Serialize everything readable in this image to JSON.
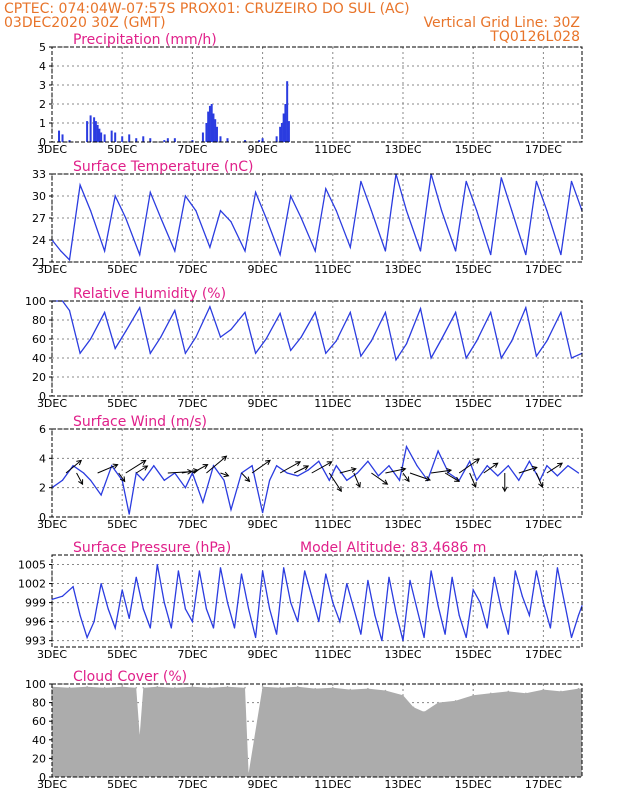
{
  "header": {
    "line1_left": "CPTEC:   074:04W-07:57S   PROX01: CRUZEIRO DO SUL (AC)",
    "line2_left": "03DEC2020 30Z (GMT)",
    "line2_right": "Vertical Grid Line: 30Z",
    "line3_right": "TQ0126L028"
  },
  "colors": {
    "header": "#e8742a",
    "title": "#e0208a",
    "series": "#2b3ce0",
    "cloud": "#acacac",
    "arrow": "#000000"
  },
  "chart_data": [
    {
      "type": "bar",
      "title": "Precipitation (mm/h)",
      "xticks": [
        "3DEC",
        "5DEC",
        "7DEC",
        "9DEC",
        "11DEC",
        "13DEC",
        "15DEC",
        "17DEC"
      ],
      "xtick_days": [
        3,
        5,
        7,
        9,
        11,
        13,
        15,
        17
      ],
      "xlim": [
        3,
        18.1
      ],
      "ylim": [
        0,
        5
      ],
      "yticks": [
        0,
        1,
        2,
        3,
        4,
        5
      ],
      "series": [
        {
          "x": [
            3.2,
            3.3,
            3.5,
            4.0,
            4.1,
            4.2,
            4.25,
            4.3,
            4.35,
            4.4,
            4.5,
            4.7,
            4.8,
            5.0,
            5.2,
            5.4,
            5.6,
            5.8,
            6.2,
            6.3,
            6.5,
            7.0,
            7.3,
            7.4,
            7.45,
            7.5,
            7.55,
            7.6,
            7.65,
            7.7,
            7.8,
            8.0,
            8.5,
            8.9,
            9.0,
            9.4,
            9.5,
            9.55,
            9.6,
            9.65,
            9.7,
            9.75
          ],
          "values": [
            0.6,
            0.4,
            0.1,
            1.1,
            1.4,
            1.3,
            1.1,
            0.9,
            0.7,
            0.5,
            0.4,
            0.6,
            0.5,
            0.3,
            0.4,
            0.2,
            0.3,
            0.2,
            0.1,
            0.2,
            0.2,
            0.1,
            0.5,
            1.0,
            1.6,
            1.9,
            2.0,
            1.5,
            1.2,
            0.8,
            0.3,
            0.2,
            0.1,
            0.1,
            0.2,
            0.3,
            0.8,
            1.0,
            1.5,
            2.0,
            3.2,
            1.1
          ]
        }
      ]
    },
    {
      "type": "line",
      "title": "Surface Temperature (nC)",
      "xticks": [
        "3DEC",
        "5DEC",
        "7DEC",
        "9DEC",
        "11DEC",
        "13DEC",
        "15DEC",
        "17DEC"
      ],
      "xtick_days": [
        3,
        5,
        7,
        9,
        11,
        13,
        15,
        17
      ],
      "xlim": [
        3,
        18.1
      ],
      "ylim": [
        21,
        33
      ],
      "yticks": [
        21,
        24,
        27,
        30,
        33
      ],
      "series": [
        {
          "x": [
            3.0,
            3.25,
            3.5,
            3.8,
            4.1,
            4.5,
            4.8,
            5.1,
            5.5,
            5.8,
            6.1,
            6.5,
            6.8,
            7.1,
            7.5,
            7.8,
            8.1,
            8.5,
            8.8,
            9.1,
            9.5,
            9.8,
            10.1,
            10.5,
            10.8,
            11.1,
            11.5,
            11.8,
            12.1,
            12.5,
            12.8,
            13.1,
            13.5,
            13.8,
            14.1,
            14.5,
            14.8,
            15.1,
            15.5,
            15.8,
            16.1,
            16.5,
            16.8,
            17.1,
            17.5,
            17.8,
            18.1
          ],
          "values": [
            24,
            22.5,
            21.3,
            31.5,
            28,
            22.5,
            30,
            27,
            22,
            30.5,
            27,
            22.5,
            30,
            28,
            23,
            28,
            26.5,
            22.5,
            30.5,
            27,
            22,
            30,
            27,
            22.5,
            31,
            28,
            23,
            32,
            28,
            22.5,
            33,
            28,
            22.5,
            33,
            28,
            22.5,
            32,
            28,
            22,
            32.5,
            28,
            22,
            32,
            28,
            22,
            32,
            28
          ]
        }
      ]
    },
    {
      "type": "line",
      "title": "Relative Humidity (%)",
      "xticks": [
        "3DEC",
        "5DEC",
        "7DEC",
        "9DEC",
        "11DEC",
        "13DEC",
        "15DEC",
        "17DEC"
      ],
      "xtick_days": [
        3,
        5,
        7,
        9,
        11,
        13,
        15,
        17
      ],
      "xlim": [
        3,
        18.1
      ],
      "ylim": [
        0,
        100
      ],
      "yticks": [
        0,
        20,
        40,
        60,
        80,
        100
      ],
      "series": [
        {
          "x": [
            3.0,
            3.3,
            3.5,
            3.8,
            4.1,
            4.5,
            4.8,
            5.1,
            5.5,
            5.8,
            6.1,
            6.5,
            6.8,
            7.1,
            7.5,
            7.8,
            8.1,
            8.5,
            8.8,
            9.1,
            9.5,
            9.8,
            10.1,
            10.5,
            10.8,
            11.1,
            11.5,
            11.8,
            12.1,
            12.5,
            12.8,
            13.1,
            13.5,
            13.8,
            14.1,
            14.5,
            14.8,
            15.1,
            15.5,
            15.8,
            16.1,
            16.5,
            16.8,
            17.1,
            17.5,
            17.8,
            18.1
          ],
          "values": [
            100,
            100,
            90,
            45,
            60,
            88,
            50,
            68,
            93,
            45,
            62,
            90,
            45,
            62,
            94,
            62,
            70,
            88,
            45,
            60,
            87,
            48,
            62,
            88,
            45,
            58,
            88,
            42,
            58,
            88,
            38,
            55,
            92,
            40,
            60,
            88,
            40,
            58,
            88,
            40,
            58,
            93,
            42,
            58,
            88,
            40,
            45
          ]
        }
      ]
    },
    {
      "type": "line",
      "title": "Surface Wind (m/s)",
      "xticks": [
        "3DEC",
        "5DEC",
        "7DEC",
        "9DEC",
        "11DEC",
        "13DEC",
        "15DEC",
        "17DEC"
      ],
      "xtick_days": [
        3,
        5,
        7,
        9,
        11,
        13,
        15,
        17
      ],
      "xlim": [
        3,
        18.1
      ],
      "ylim": [
        0,
        6
      ],
      "yticks": [
        0,
        2,
        4,
        6
      ],
      "series": [
        {
          "x": [
            3.0,
            3.3,
            3.6,
            3.9,
            4.1,
            4.4,
            4.7,
            5.0,
            5.2,
            5.4,
            5.6,
            5.9,
            6.2,
            6.5,
            6.8,
            7.0,
            7.3,
            7.6,
            7.9,
            8.1,
            8.4,
            8.7,
            9.0,
            9.2,
            9.4,
            9.7,
            10.0,
            10.3,
            10.6,
            10.9,
            11.1,
            11.4,
            11.7,
            12.0,
            12.3,
            12.6,
            12.9,
            13.1,
            13.4,
            13.7,
            14.0,
            14.3,
            14.6,
            14.9,
            15.1,
            15.4,
            15.7,
            16.0,
            16.3,
            16.6,
            16.9,
            17.1,
            17.4,
            17.7,
            18.0
          ],
          "values": [
            2,
            2.5,
            3.5,
            3,
            2.5,
            1.5,
            3.5,
            2.5,
            0.2,
            3,
            2.5,
            3.5,
            2.5,
            3,
            2,
            3,
            1,
            3.5,
            2.5,
            0.5,
            3,
            3.5,
            0.3,
            2.5,
            3.5,
            3,
            2.8,
            3.2,
            3.8,
            2.5,
            3.5,
            2.5,
            3,
            3.8,
            2.8,
            3.5,
            2.5,
            4.8,
            3.5,
            2.5,
            4.5,
            3,
            2.5,
            3.8,
            2.5,
            3.5,
            2.8,
            3.5,
            2.5,
            3.8,
            2.5,
            3.5,
            2.8,
            3.5,
            3
          ]
        }
      ],
      "arrows": [
        {
          "x": 3.4,
          "dx": 0.38,
          "dy": 0.9
        },
        {
          "x": 3.7,
          "dx": 0.15,
          "dy": -0.8
        },
        {
          "x": 4.3,
          "dx": 0.5,
          "dy": 0.6
        },
        {
          "x": 4.9,
          "dx": 0.15,
          "dy": -0.6
        },
        {
          "x": 5.1,
          "dx": 0.5,
          "dy": 0.9
        },
        {
          "x": 5.4,
          "dx": 0.28,
          "dy": 0.5
        },
        {
          "x": 6.3,
          "dx": 0.6,
          "dy": 0.1
        },
        {
          "x": 6.7,
          "dx": 0.4,
          "dy": 0.2
        },
        {
          "x": 7.0,
          "dx": 0.38,
          "dy": 0.6
        },
        {
          "x": 7.4,
          "dx": 0.5,
          "dy": 1.2
        },
        {
          "x": 7.8,
          "dx": 0.2,
          "dy": -0.2
        },
        {
          "x": 8.4,
          "dx": 0.2,
          "dy": -0.6
        },
        {
          "x": 8.7,
          "dx": 0.45,
          "dy": 0.9
        },
        {
          "x": 9.5,
          "dx": 0.5,
          "dy": 0.8
        },
        {
          "x": 9.9,
          "dx": 0.35,
          "dy": 0.5
        },
        {
          "x": 10.4,
          "dx": 0.5,
          "dy": 0.8
        },
        {
          "x": 10.9,
          "dx": 0.3,
          "dy": -1.3
        },
        {
          "x": 11.2,
          "dx": 0.4,
          "dy": 0.3
        },
        {
          "x": 11.6,
          "dx": 0.15,
          "dy": -1.0
        },
        {
          "x": 12.1,
          "dx": 0.4,
          "dy": -0.8
        },
        {
          "x": 12.5,
          "dx": 0.5,
          "dy": 0.3
        },
        {
          "x": 13.0,
          "dx": 0.15,
          "dy": -0.6
        },
        {
          "x": 13.2,
          "dx": 0.5,
          "dy": -0.5
        },
        {
          "x": 13.8,
          "dx": 0.5,
          "dy": 0.2
        },
        {
          "x": 14.2,
          "dx": 0.35,
          "dy": -0.6
        },
        {
          "x": 14.6,
          "dx": 0.5,
          "dy": 1.0
        },
        {
          "x": 14.9,
          "dx": 0.15,
          "dy": -1.0
        },
        {
          "x": 15.3,
          "dx": 0.35,
          "dy": 0.7
        },
        {
          "x": 15.9,
          "dx": 0.0,
          "dy": -1.3
        },
        {
          "x": 16.3,
          "dx": 0.45,
          "dy": 0.4
        },
        {
          "x": 16.8,
          "dx": 0.15,
          "dy": -1.0
        },
        {
          "x": 17.1,
          "dx": 0.38,
          "dy": 0.7
        }
      ]
    },
    {
      "type": "line",
      "title": "Surface Pressure (hPa)",
      "annotation": "Model Altitude: 83.4686  m",
      "xticks": [
        "3DEC",
        "5DEC",
        "7DEC",
        "9DEC",
        "11DEC",
        "13DEC",
        "15DEC",
        "17DEC"
      ],
      "xtick_days": [
        3,
        5,
        7,
        9,
        11,
        13,
        15,
        17
      ],
      "xlim": [
        3,
        18.1
      ],
      "ylim": [
        992,
        1006.5
      ],
      "yticks": [
        993,
        996,
        999,
        1002,
        1005
      ],
      "series": [
        {
          "x": [
            3.0,
            3.3,
            3.6,
            3.8,
            4.0,
            4.2,
            4.4,
            4.6,
            4.8,
            5.0,
            5.2,
            5.4,
            5.6,
            5.8,
            6.0,
            6.2,
            6.4,
            6.6,
            6.8,
            7.0,
            7.2,
            7.4,
            7.6,
            7.8,
            8.0,
            8.2,
            8.4,
            8.6,
            8.8,
            9.0,
            9.2,
            9.4,
            9.6,
            9.8,
            10.0,
            10.2,
            10.4,
            10.6,
            10.8,
            11.0,
            11.2,
            11.4,
            11.6,
            11.8,
            12.0,
            12.2,
            12.4,
            12.6,
            12.8,
            13.0,
            13.2,
            13.4,
            13.6,
            13.8,
            14.0,
            14.2,
            14.4,
            14.6,
            14.8,
            15.0,
            15.2,
            15.4,
            15.6,
            15.8,
            16.0,
            16.2,
            16.4,
            16.6,
            16.8,
            17.0,
            17.2,
            17.4,
            17.6,
            17.8,
            18.0,
            18.1
          ],
          "values": [
            999.5,
            1000,
            1001.5,
            997,
            993.5,
            996,
            1002,
            998,
            995,
            1001,
            996.5,
            1003,
            998,
            995,
            1005,
            999,
            995,
            1004,
            998,
            996,
            1004,
            998,
            995,
            1004.5,
            999,
            995,
            1003.5,
            998,
            993.5,
            1004,
            998,
            994,
            1004.5,
            999,
            996,
            1004,
            1000,
            996,
            1003.5,
            999,
            996,
            1002,
            998,
            994,
            1002.5,
            997,
            993,
            1003,
            997.5,
            993,
            1002.5,
            998,
            993.5,
            1004,
            998.5,
            994,
            1003,
            997,
            993.5,
            1001,
            999,
            995,
            1003,
            998,
            994,
            1004,
            1000,
            997,
            1004,
            999,
            995,
            1004.5,
            999,
            993.5,
            997,
            998.5
          ]
        }
      ]
    },
    {
      "type": "bar",
      "title": "Cloud Cover (%)",
      "xticks": [
        "3DEC",
        "5DEC",
        "7DEC",
        "9DEC",
        "11DEC",
        "13DEC",
        "15DEC",
        "17DEC"
      ],
      "xtick_days": [
        3,
        5,
        7,
        9,
        11,
        13,
        15,
        17
      ],
      "xlim": [
        3,
        18.1
      ],
      "ylim": [
        0,
        100
      ],
      "yticks": [
        0,
        20,
        40,
        60,
        80,
        100
      ],
      "series": [
        {
          "x": [
            3.0,
            3.5,
            4.0,
            4.5,
            5.0,
            5.4,
            5.5,
            5.6,
            6.0,
            6.5,
            7.0,
            7.5,
            8.0,
            8.5,
            8.6,
            9.0,
            9.5,
            10.0,
            10.5,
            11.0,
            11.5,
            12.0,
            12.5,
            13.0,
            13.3,
            13.6,
            14.0,
            14.5,
            15.0,
            15.5,
            16.0,
            16.5,
            17.0,
            17.5,
            18.0
          ],
          "values": [
            97,
            96,
            97,
            96,
            97,
            96,
            45,
            96,
            97,
            96,
            97,
            96,
            97,
            96,
            4,
            97,
            96,
            97,
            95,
            96,
            94,
            95,
            93,
            88,
            75,
            70,
            80,
            82,
            88,
            90,
            92,
            90,
            94,
            92,
            95
          ]
        }
      ]
    }
  ]
}
